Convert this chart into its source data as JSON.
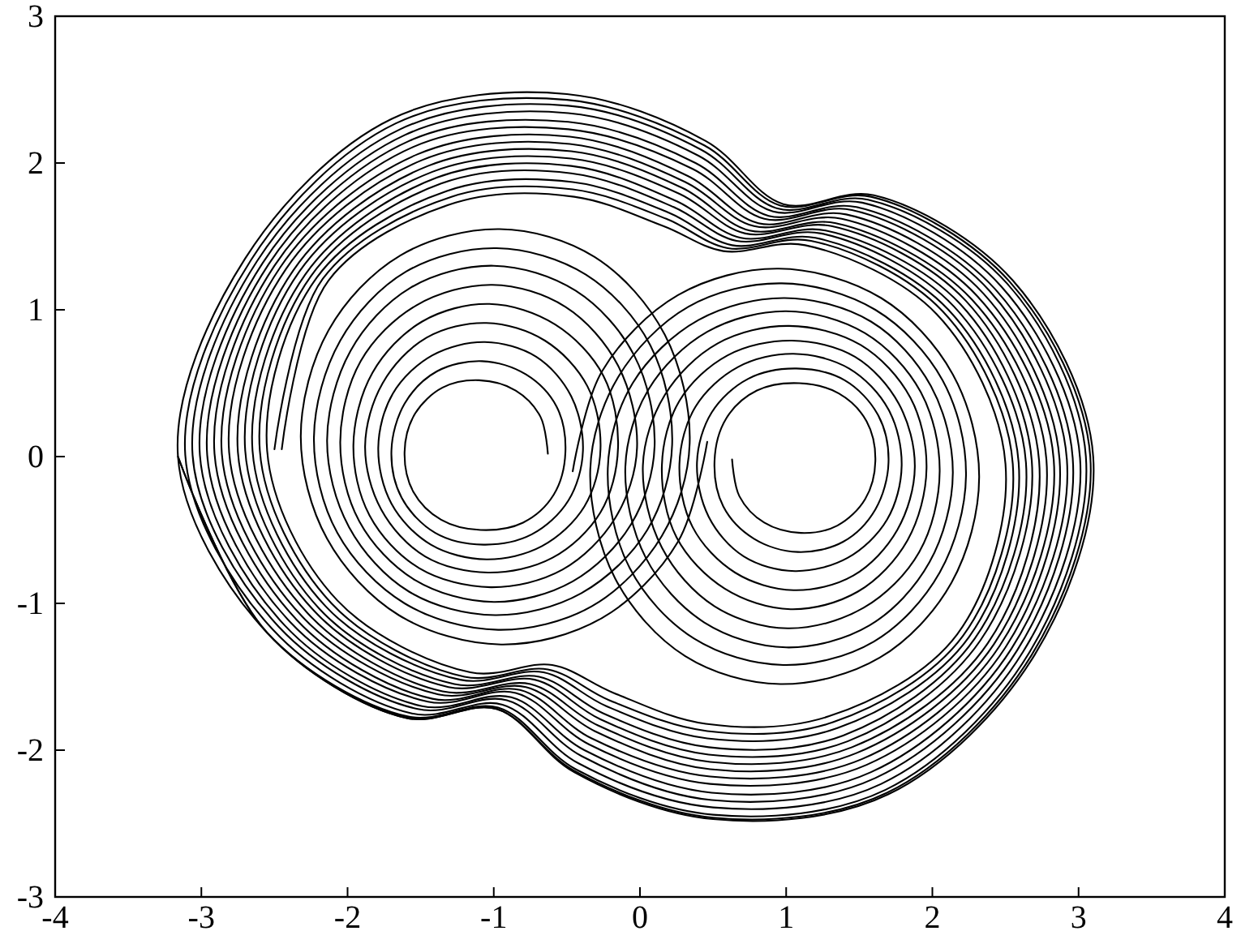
{
  "chart_data": {
    "type": "line",
    "xlim": [
      -4,
      4
    ],
    "ylim": [
      -3,
      3
    ],
    "xticks": [
      -4,
      -3,
      -2,
      -1,
      0,
      1,
      2,
      3,
      4
    ],
    "yticks": [
      -3,
      -2,
      -1,
      0,
      1,
      2,
      3
    ],
    "series": [
      {
        "color": "#000000",
        "x": [
          -0.63,
          -0.68,
          -0.85,
          -1.1,
          -1.35,
          -1.54,
          -1.61,
          -1.55,
          -1.36,
          -1.09,
          -0.8,
          -0.59,
          -0.51,
          -0.57,
          -0.78,
          -1.08,
          -1.39,
          -1.61,
          -1.7,
          -1.63,
          -1.4,
          -1.07,
          -0.74,
          -0.49,
          -0.39,
          -0.47,
          -0.71,
          -1.06,
          -1.42,
          -1.69,
          -1.79,
          -1.7,
          -1.43,
          -1.05,
          -0.67,
          -0.38,
          -0.27,
          -0.36,
          -0.65,
          -1.05,
          -1.46,
          -1.76,
          -1.88,
          -1.77,
          -1.47,
          -1.04,
          -0.6,
          -0.27,
          -0.15,
          -0.25,
          -0.58,
          -1.03,
          -1.49,
          -1.83,
          -1.96,
          -1.85,
          -1.51,
          -1.02,
          -0.53,
          -0.17,
          -0.02,
          -0.15,
          -0.51,
          -1.01,
          -1.53,
          -1.91,
          -2.05,
          -1.92,
          -1.54,
          -1.0,
          -0.46,
          -0.06,
          0.1,
          -0.04,
          -0.44,
          -1.0,
          -1.57,
          -1.98,
          -2.14,
          -1.99,
          -1.58,
          -0.99,
          -0.4,
          0.05,
          0.22,
          0.07,
          -0.37,
          -0.98,
          -1.6,
          -2.05,
          -2.23,
          -2.07,
          -1.61,
          -0.97,
          -0.33,
          0.15,
          0.34,
          0.17,
          -0.31,
          -0.96,
          -1.64,
          -2.13,
          -2.32,
          -2.14,
          -1.65,
          -0.95,
          -0.26,
          0.26,
          0.46
        ],
        "values": [
          0.02,
          0.27,
          0.45,
          0.52,
          0.47,
          0.29,
          0.03,
          -0.24,
          -0.43,
          -0.5,
          -0.45,
          -0.26,
          0.03,
          0.34,
          0.56,
          0.65,
          0.58,
          0.36,
          0.04,
          -0.28,
          -0.52,
          -0.6,
          -0.53,
          -0.3,
          0.04,
          0.41,
          0.68,
          0.78,
          0.69,
          0.43,
          0.06,
          -0.32,
          -0.6,
          -0.7,
          -0.61,
          -0.34,
          0.05,
          0.48,
          0.79,
          0.91,
          0.81,
          0.5,
          0.07,
          -0.36,
          -0.68,
          -0.79,
          -0.69,
          -0.38,
          0.06,
          0.55,
          0.9,
          1.04,
          0.92,
          0.57,
          0.08,
          -0.4,
          -0.76,
          -0.89,
          -0.77,
          -0.42,
          0.06,
          0.62,
          1.02,
          1.17,
          1.03,
          0.65,
          0.1,
          -0.44,
          -0.84,
          -0.99,
          -0.85,
          -0.46,
          0.07,
          0.69,
          1.13,
          1.3,
          1.15,
          0.72,
          0.11,
          -0.48,
          -0.92,
          -1.08,
          -0.93,
          -0.5,
          0.08,
          0.76,
          1.24,
          1.42,
          1.26,
          0.79,
          0.13,
          -0.52,
          -1.0,
          -1.18,
          -1.02,
          -0.54,
          0.09,
          0.83,
          1.36,
          1.55,
          1.37,
          0.86,
          0.14,
          -0.56,
          -1.08,
          -1.28,
          -1.1,
          -0.58,
          0.1
        ]
      },
      {
        "color": "#000000",
        "x": [
          0.63,
          0.68,
          0.85,
          1.1,
          1.35,
          1.54,
          1.61,
          1.55,
          1.36,
          1.09,
          0.8,
          0.59,
          0.51,
          0.57,
          0.78,
          1.08,
          1.39,
          1.61,
          1.7,
          1.63,
          1.4,
          1.07,
          0.74,
          0.49,
          0.39,
          0.47,
          0.71,
          1.06,
          1.42,
          1.69,
          1.79,
          1.7,
          1.43,
          1.05,
          0.67,
          0.38,
          0.27,
          0.36,
          0.65,
          1.05,
          1.46,
          1.76,
          1.88,
          1.77,
          1.47,
          1.04,
          0.6,
          0.27,
          0.15,
          0.25,
          0.58,
          1.03,
          1.49,
          1.83,
          1.96,
          1.85,
          1.51,
          1.02,
          0.53,
          0.17,
          0.02,
          0.15,
          0.51,
          1.01,
          1.53,
          1.91,
          2.05,
          1.92,
          1.54,
          1.0,
          0.46,
          0.06,
          -0.1,
          0.04,
          0.44,
          1.0,
          1.57,
          1.98,
          2.14,
          1.99,
          1.58,
          0.99,
          0.4,
          -0.05,
          -0.22,
          -0.07,
          0.37,
          0.98,
          1.6,
          2.05,
          2.23,
          2.07,
          1.61,
          0.97,
          0.33,
          -0.15,
          -0.34,
          -0.17,
          0.31,
          0.96,
          1.64,
          2.13,
          2.32,
          2.14,
          1.65,
          0.95,
          0.26,
          -0.26,
          -0.46
        ],
        "values": [
          -0.02,
          -0.27,
          -0.45,
          -0.52,
          -0.47,
          -0.29,
          -0.03,
          0.24,
          0.43,
          0.5,
          0.45,
          0.26,
          -0.03,
          -0.34,
          -0.56,
          -0.65,
          -0.58,
          -0.36,
          -0.04,
          0.28,
          0.52,
          0.6,
          0.53,
          0.3,
          -0.04,
          -0.41,
          -0.68,
          -0.78,
          -0.69,
          -0.43,
          -0.06,
          0.32,
          0.6,
          0.7,
          0.61,
          0.34,
          -0.05,
          -0.48,
          -0.79,
          -0.91,
          -0.81,
          -0.5,
          -0.07,
          0.36,
          0.68,
          0.79,
          0.69,
          0.38,
          -0.06,
          -0.55,
          -0.9,
          -1.04,
          -0.92,
          -0.57,
          -0.08,
          0.4,
          0.76,
          0.89,
          0.77,
          0.42,
          -0.06,
          -0.62,
          -1.02,
          -1.17,
          -1.03,
          -0.65,
          -0.1,
          0.44,
          0.84,
          0.99,
          0.85,
          0.46,
          -0.07,
          -0.69,
          -1.13,
          -1.3,
          -1.15,
          -0.72,
          -0.11,
          0.48,
          0.92,
          1.08,
          0.93,
          0.5,
          -0.08,
          -0.76,
          -1.24,
          -1.42,
          -1.26,
          -0.79,
          -0.13,
          0.52,
          1.0,
          1.18,
          1.02,
          0.54,
          -0.09,
          -0.83,
          -1.36,
          -1.55,
          -1.37,
          -0.86,
          -0.14,
          0.56,
          1.08,
          1.28,
          1.1,
          0.58,
          -0.1
        ]
      },
      {
        "color": "#000000",
        "x": [
          -2.45,
          -2.13,
          -1.26,
          -0.45,
          0.16,
          0.57,
          1.13,
          2.03,
          2.5,
          2.17,
          1.29,
          0.45,
          -0.18,
          -0.6,
          -1.16,
          -2.07,
          -2.55,
          -2.21,
          -1.32,
          -0.46,
          0.2,
          0.63,
          1.2,
          2.11,
          2.59,
          2.25,
          1.35,
          0.46,
          -0.23,
          -0.66,
          -1.23,
          -2.15,
          -2.65,
          -2.29,
          -1.39,
          -0.47,
          0.25,
          0.69,
          1.27,
          2.19,
          2.68,
          2.33,
          1.42,
          0.47,
          -0.27,
          -0.72,
          -1.31,
          -2.23,
          -2.75,
          -2.37,
          -1.45,
          -0.47,
          0.29,
          0.75,
          1.34,
          2.27,
          2.78,
          2.42,
          1.48,
          0.48,
          -0.31,
          -0.78,
          -1.38,
          -2.31,
          -2.86,
          -2.46,
          -1.52,
          -0.48,
          0.33,
          0.81,
          1.41,
          2.35,
          2.87,
          2.5,
          1.55,
          0.48,
          -0.35,
          -0.85,
          -1.45,
          -2.39,
          -2.96,
          -2.54,
          -1.58,
          -0.49,
          0.38,
          0.88,
          1.48,
          2.43,
          2.96,
          2.58,
          1.61,
          0.49,
          -0.4,
          -0.91,
          -1.52,
          -2.47,
          -3.06,
          -2.62,
          -1.64,
          -0.49,
          0.42,
          0.94,
          1.56,
          2.51,
          3.05,
          2.66,
          1.68,
          0.5,
          -0.44,
          -0.97,
          -1.59,
          -2.55,
          -3.16,
          -2.7,
          -1.7,
          -0.5,
          0.45,
          0.98,
          1.6,
          2.55,
          3.1,
          2.7,
          1.7,
          0.5,
          -0.45,
          -0.98,
          -1.6,
          -2.55,
          -3.16
        ],
        "values": [
          0.05,
          1.2,
          1.73,
          1.77,
          1.57,
          1.4,
          1.44,
          0.97,
          -0.05,
          -1.21,
          -1.77,
          -1.82,
          -1.61,
          -1.42,
          -1.47,
          -0.98,
          0.04,
          1.22,
          1.81,
          1.87,
          1.66,
          1.44,
          1.49,
          1.0,
          -0.04,
          -1.23,
          -1.85,
          -1.92,
          -1.7,
          -1.47,
          -1.52,
          -1.02,
          0.04,
          1.24,
          1.9,
          1.98,
          1.74,
          1.49,
          1.54,
          1.04,
          -0.03,
          -1.25,
          -1.94,
          -2.03,
          -1.79,
          -1.52,
          -1.57,
          -1.05,
          0.03,
          1.27,
          1.98,
          2.08,
          1.83,
          1.54,
          1.59,
          1.07,
          -0.02,
          -1.28,
          -2.02,
          -2.13,
          -1.87,
          -1.57,
          -1.62,
          -1.09,
          0.02,
          1.29,
          2.06,
          2.18,
          1.91,
          1.59,
          1.65,
          1.11,
          -0.02,
          -1.3,
          -2.1,
          -2.23,
          -1.96,
          -1.61,
          -1.67,
          -1.13,
          0.01,
          1.31,
          2.15,
          2.28,
          2.0,
          1.64,
          1.7,
          1.14,
          -0.01,
          -1.32,
          -2.19,
          -2.34,
          -2.04,
          -1.66,
          -1.72,
          -1.16,
          0.01,
          1.33,
          2.23,
          2.39,
          2.09,
          1.69,
          1.75,
          1.18,
          0,
          -1.34,
          -2.27,
          -2.44,
          -2.13,
          -1.71,
          -1.77,
          -1.2,
          0,
          1.35,
          2.3,
          2.47,
          2.15,
          1.72,
          1.78,
          1.2,
          0,
          -1.35,
          -2.3,
          -2.47,
          -2.15,
          -1.72,
          -1.78,
          -1.2,
          0
        ]
      },
      {
        "color": "#000000",
        "x": [
          -2.5,
          -2.17,
          -1.29,
          -0.46,
          0.18,
          0.6,
          1.17,
          2.07,
          2.55,
          2.21,
          1.32,
          0.46,
          -0.21,
          -0.63,
          -1.2,
          -2.11,
          -2.6,
          -2.25,
          -1.36,
          -0.47,
          0.23,
          0.66,
          1.24,
          2.15,
          2.64,
          2.29,
          1.39,
          0.47,
          -0.25,
          -0.69,
          -1.27,
          -2.19,
          -2.7,
          -2.33,
          -1.42,
          -0.47,
          0.27,
          0.72,
          1.31,
          2.23,
          2.73,
          2.38,
          1.45,
          0.48,
          -0.29,
          -0.75,
          -1.35,
          -2.27,
          -2.81,
          -2.42,
          -1.49,
          -0.48,
          0.31,
          0.78,
          1.38,
          2.31,
          2.83,
          2.46,
          1.52,
          0.48,
          -0.33,
          -0.82,
          -1.42,
          -2.35,
          -2.91,
          -2.5,
          -1.55,
          -0.49,
          0.36,
          0.85,
          1.45,
          2.39,
          2.92,
          2.54,
          1.58,
          0.49,
          -0.38,
          -0.88,
          -1.49,
          -2.43,
          -3.01,
          -2.58,
          -1.61,
          -0.49,
          0.4,
          0.91,
          1.52,
          2.47,
          3.01,
          2.62,
          1.65,
          0.5,
          -0.42,
          -0.94,
          -1.56,
          -2.51,
          -3.11,
          -2.66,
          -1.67,
          -0.5,
          0.44,
          0.96,
          1.58,
          2.53,
          3.08,
          2.68,
          1.69,
          0.5,
          -0.45,
          -0.98,
          -1.6,
          -2.55,
          -3.16
        ],
        "values": [
          0.05,
          1.21,
          1.77,
          1.82,
          1.62,
          1.42,
          1.47,
          0.99,
          -0.05,
          -1.22,
          -1.81,
          -1.87,
          -1.66,
          -1.45,
          -1.5,
          -1.0,
          0.04,
          1.23,
          1.86,
          1.93,
          1.7,
          1.47,
          1.52,
          1.02,
          -0.04,
          -1.24,
          -1.9,
          -1.98,
          -1.75,
          -1.5,
          -1.55,
          -1.04,
          0.04,
          1.26,
          1.94,
          2.03,
          1.79,
          1.52,
          1.57,
          1.06,
          -0.03,
          -1.27,
          -1.98,
          -2.08,
          -1.83,
          -1.55,
          -1.6,
          -1.07,
          0.03,
          1.28,
          2.02,
          2.13,
          1.87,
          1.57,
          1.62,
          1.09,
          -0.02,
          -1.29,
          -2.06,
          -2.18,
          -1.92,
          -1.59,
          -1.65,
          -1.11,
          0.02,
          1.3,
          2.11,
          2.23,
          1.96,
          1.62,
          1.68,
          1.13,
          -0.02,
          -1.31,
          -2.15,
          -2.29,
          -2.0,
          -1.64,
          -1.7,
          -1.15,
          0.01,
          1.32,
          2.19,
          2.34,
          2.05,
          1.67,
          1.73,
          1.16,
          -0.01,
          -1.33,
          -2.23,
          -2.39,
          -2.09,
          -1.69,
          -1.75,
          -1.18,
          0.01,
          1.34,
          2.27,
          2.43,
          2.12,
          1.71,
          1.77,
          1.19,
          0,
          -1.35,
          -2.29,
          -2.46,
          -2.14,
          -1.72,
          -1.78,
          -1.2,
          0
        ]
      }
    ]
  }
}
